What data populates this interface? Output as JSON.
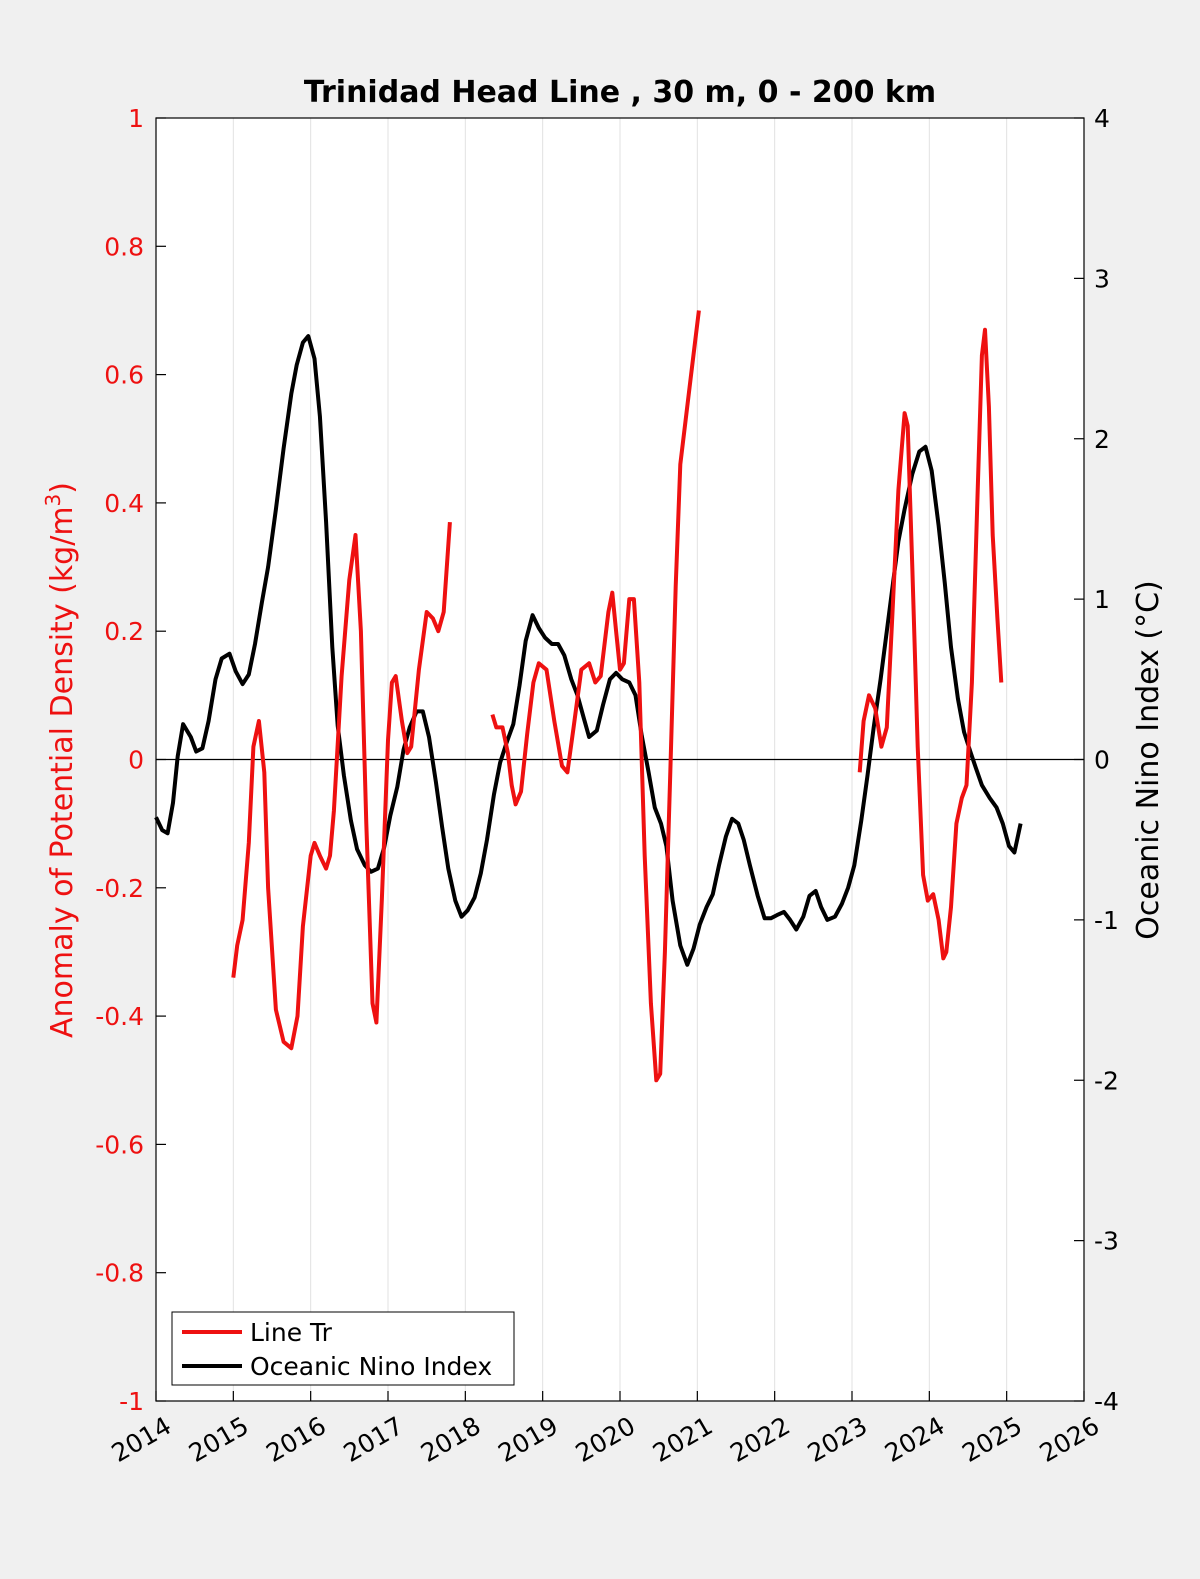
{
  "chart_data": {
    "type": "line",
    "title": "Trinidad Head Line , 30 m, 0 - 200 km",
    "xlabel": "",
    "ylabel_left_main": "Anomaly of Potential Density (kg/m",
    "ylabel_left_sup": "3",
    "ylabel_left_close": ")",
    "ylabel_right": "Oceanic Nino Index (°C)",
    "xlim": [
      2014,
      2026
    ],
    "ylim_left": [
      -1,
      1
    ],
    "ylim_right": [
      -4,
      4
    ],
    "x_ticks": [
      2014,
      2015,
      2016,
      2017,
      2018,
      2019,
      2020,
      2021,
      2022,
      2023,
      2024,
      2025,
      2026
    ],
    "x_tick_labels": [
      "2014",
      "2015",
      "2016",
      "2017",
      "2018",
      "2019",
      "2020",
      "2021",
      "2022",
      "2023",
      "2024",
      "2025",
      "2026"
    ],
    "y_ticks_left": [
      1,
      0.8,
      0.6,
      0.4,
      0.2,
      0,
      -0.2,
      -0.4,
      -0.6,
      -0.8,
      -1
    ],
    "y_tick_labels_left": [
      "1",
      "0.8",
      "0.6",
      "0.4",
      "0.2",
      "0",
      "-0.2",
      "-0.4",
      "-0.6",
      "-0.8",
      "-1"
    ],
    "y_ticks_right": [
      4,
      3,
      2,
      1,
      0,
      -1,
      -2,
      -3,
      -4
    ],
    "y_tick_labels_right": [
      "4",
      "3",
      "2",
      "1",
      "0",
      "-1",
      "-2",
      "-3",
      "-4"
    ],
    "grid": "vertical",
    "zero_line": true,
    "legend_position": "bottom-left",
    "colors": {
      "line_tr": "#ee1111",
      "oni": "#000000",
      "left_axis": "#ee1111",
      "right_axis": "#000000"
    },
    "series": [
      {
        "name": "Line Tr",
        "axis": "left",
        "segments": [
          [
            [
              2015.0,
              -0.34
            ],
            [
              2015.05,
              -0.29
            ],
            [
              2015.12,
              -0.25
            ],
            [
              2015.2,
              -0.13
            ],
            [
              2015.26,
              0.02
            ],
            [
              2015.33,
              0.06
            ],
            [
              2015.4,
              -0.02
            ],
            [
              2015.45,
              -0.2
            ],
            [
              2015.55,
              -0.39
            ],
            [
              2015.65,
              -0.44
            ],
            [
              2015.75,
              -0.45
            ],
            [
              2015.83,
              -0.4
            ],
            [
              2015.9,
              -0.26
            ],
            [
              2016.0,
              -0.15
            ],
            [
              2016.05,
              -0.13
            ],
            [
              2016.12,
              -0.15
            ],
            [
              2016.2,
              -0.17
            ],
            [
              2016.25,
              -0.15
            ],
            [
              2016.3,
              -0.08
            ],
            [
              2016.4,
              0.13
            ],
            [
              2016.5,
              0.28
            ],
            [
              2016.58,
              0.35
            ],
            [
              2016.65,
              0.2
            ],
            [
              2016.72,
              -0.1
            ],
            [
              2016.8,
              -0.38
            ],
            [
              2016.85,
              -0.41
            ],
            [
              2016.92,
              -0.22
            ],
            [
              2017.0,
              0.03
            ],
            [
              2017.05,
              0.12
            ],
            [
              2017.1,
              0.13
            ],
            [
              2017.18,
              0.06
            ],
            [
              2017.25,
              0.01
            ],
            [
              2017.3,
              0.02
            ],
            [
              2017.4,
              0.14
            ],
            [
              2017.5,
              0.23
            ],
            [
              2017.58,
              0.22
            ],
            [
              2017.65,
              0.2
            ],
            [
              2017.72,
              0.23
            ],
            [
              2017.8,
              0.37
            ]
          ],
          [
            [
              2018.35,
              0.07
            ],
            [
              2018.4,
              0.05
            ],
            [
              2018.48,
              0.05
            ],
            [
              2018.55,
              0.01
            ],
            [
              2018.6,
              -0.04
            ],
            [
              2018.65,
              -0.07
            ],
            [
              2018.72,
              -0.05
            ],
            [
              2018.8,
              0.04
            ],
            [
              2018.88,
              0.12
            ],
            [
              2018.95,
              0.15
            ],
            [
              2019.05,
              0.14
            ],
            [
              2019.15,
              0.06
            ],
            [
              2019.25,
              -0.01
            ],
            [
              2019.32,
              -0.02
            ],
            [
              2019.4,
              0.05
            ],
            [
              2019.5,
              0.14
            ],
            [
              2019.6,
              0.15
            ],
            [
              2019.68,
              0.12
            ],
            [
              2019.75,
              0.13
            ],
            [
              2019.85,
              0.23
            ],
            [
              2019.9,
              0.26
            ],
            [
              2019.95,
              0.2
            ],
            [
              2020.0,
              0.14
            ],
            [
              2020.05,
              0.15
            ],
            [
              2020.12,
              0.25
            ],
            [
              2020.18,
              0.25
            ],
            [
              2020.25,
              0.12
            ],
            [
              2020.32,
              -0.15
            ],
            [
              2020.4,
              -0.38
            ],
            [
              2020.47,
              -0.5
            ],
            [
              2020.52,
              -0.49
            ],
            [
              2020.58,
              -0.3
            ],
            [
              2020.65,
              -0.02
            ],
            [
              2020.72,
              0.27
            ],
            [
              2020.78,
              0.46
            ],
            [
              2020.85,
              0.53
            ],
            [
              2020.92,
              0.6
            ],
            [
              2020.97,
              0.65
            ],
            [
              2021.02,
              0.7
            ]
          ],
          [
            [
              2023.1,
              -0.02
            ],
            [
              2023.15,
              0.06
            ],
            [
              2023.22,
              0.1
            ],
            [
              2023.3,
              0.08
            ],
            [
              2023.38,
              0.02
            ],
            [
              2023.45,
              0.05
            ],
            [
              2023.52,
              0.22
            ],
            [
              2023.6,
              0.42
            ],
            [
              2023.68,
              0.54
            ],
            [
              2023.72,
              0.52
            ],
            [
              2023.78,
              0.3
            ],
            [
              2023.85,
              0.02
            ],
            [
              2023.92,
              -0.18
            ],
            [
              2023.98,
              -0.22
            ],
            [
              2024.05,
              -0.21
            ],
            [
              2024.12,
              -0.25
            ],
            [
              2024.18,
              -0.31
            ],
            [
              2024.22,
              -0.3
            ],
            [
              2024.28,
              -0.23
            ],
            [
              2024.35,
              -0.1
            ],
            [
              2024.42,
              -0.06
            ],
            [
              2024.48,
              -0.04
            ],
            [
              2024.55,
              0.12
            ],
            [
              2024.62,
              0.4
            ],
            [
              2024.68,
              0.63
            ],
            [
              2024.72,
              0.67
            ],
            [
              2024.77,
              0.55
            ],
            [
              2024.82,
              0.35
            ],
            [
              2024.88,
              0.22
            ],
            [
              2024.93,
              0.12
            ]
          ]
        ]
      },
      {
        "name": "Oceanic Nino Index",
        "axis": "right",
        "segments": [
          [
            [
              2014.0,
              -0.36
            ],
            [
              2014.08,
              -0.44
            ],
            [
              2014.15,
              -0.46
            ],
            [
              2014.22,
              -0.27
            ],
            [
              2014.28,
              0.02
            ],
            [
              2014.35,
              0.22
            ],
            [
              2014.45,
              0.14
            ],
            [
              2014.52,
              0.05
            ],
            [
              2014.6,
              0.07
            ],
            [
              2014.68,
              0.24
            ],
            [
              2014.77,
              0.5
            ],
            [
              2014.85,
              0.63
            ],
            [
              2014.95,
              0.66
            ],
            [
              2015.03,
              0.55
            ],
            [
              2015.12,
              0.47
            ],
            [
              2015.2,
              0.53
            ],
            [
              2015.28,
              0.72
            ],
            [
              2015.37,
              0.98
            ],
            [
              2015.45,
              1.2
            ],
            [
              2015.55,
              1.56
            ],
            [
              2015.65,
              1.94
            ],
            [
              2015.75,
              2.28
            ],
            [
              2015.82,
              2.46
            ],
            [
              2015.9,
              2.6
            ],
            [
              2015.97,
              2.64
            ],
            [
              2016.05,
              2.5
            ],
            [
              2016.12,
              2.14
            ],
            [
              2016.2,
              1.48
            ],
            [
              2016.28,
              0.7
            ],
            [
              2016.35,
              0.21
            ],
            [
              2016.43,
              -0.1
            ],
            [
              2016.52,
              -0.38
            ],
            [
              2016.6,
              -0.56
            ],
            [
              2016.7,
              -0.66
            ],
            [
              2016.78,
              -0.7
            ],
            [
              2016.87,
              -0.68
            ],
            [
              2016.95,
              -0.55
            ],
            [
              2017.03,
              -0.35
            ],
            [
              2017.12,
              -0.17
            ],
            [
              2017.2,
              0.06
            ],
            [
              2017.28,
              0.2
            ],
            [
              2017.37,
              0.3
            ],
            [
              2017.45,
              0.3
            ],
            [
              2017.53,
              0.14
            ],
            [
              2017.62,
              -0.14
            ],
            [
              2017.7,
              -0.42
            ],
            [
              2017.78,
              -0.68
            ],
            [
              2017.87,
              -0.88
            ],
            [
              2017.95,
              -0.98
            ],
            [
              2018.03,
              -0.94
            ],
            [
              2018.12,
              -0.86
            ],
            [
              2018.2,
              -0.71
            ],
            [
              2018.28,
              -0.5
            ],
            [
              2018.37,
              -0.22
            ],
            [
              2018.45,
              -0.02
            ],
            [
              2018.53,
              0.1
            ],
            [
              2018.62,
              0.22
            ],
            [
              2018.7,
              0.46
            ],
            [
              2018.78,
              0.74
            ],
            [
              2018.87,
              0.9
            ],
            [
              2018.95,
              0.82
            ],
            [
              2019.03,
              0.76
            ],
            [
              2019.12,
              0.72
            ],
            [
              2019.2,
              0.72
            ],
            [
              2019.28,
              0.65
            ],
            [
              2019.37,
              0.5
            ],
            [
              2019.45,
              0.4
            ],
            [
              2019.53,
              0.26
            ],
            [
              2019.6,
              0.14
            ],
            [
              2019.7,
              0.18
            ],
            [
              2019.78,
              0.34
            ],
            [
              2019.87,
              0.5
            ],
            [
              2019.95,
              0.54
            ],
            [
              2020.03,
              0.5
            ],
            [
              2020.12,
              0.48
            ],
            [
              2020.2,
              0.4
            ],
            [
              2020.28,
              0.15
            ],
            [
              2020.37,
              -0.08
            ],
            [
              2020.45,
              -0.3
            ],
            [
              2020.53,
              -0.4
            ],
            [
              2020.6,
              -0.54
            ],
            [
              2020.68,
              -0.88
            ],
            [
              2020.78,
              -1.16
            ],
            [
              2020.87,
              -1.28
            ],
            [
              2020.95,
              -1.18
            ],
            [
              2021.03,
              -1.03
            ],
            [
              2021.12,
              -0.92
            ],
            [
              2021.2,
              -0.84
            ],
            [
              2021.28,
              -0.66
            ],
            [
              2021.37,
              -0.48
            ],
            [
              2021.45,
              -0.37
            ],
            [
              2021.53,
              -0.4
            ],
            [
              2021.6,
              -0.5
            ],
            [
              2021.68,
              -0.66
            ],
            [
              2021.78,
              -0.85
            ],
            [
              2021.87,
              -0.99
            ],
            [
              2021.95,
              -0.99
            ],
            [
              2022.03,
              -0.97
            ],
            [
              2022.12,
              -0.95
            ],
            [
              2022.2,
              -1.0
            ],
            [
              2022.28,
              -1.06
            ],
            [
              2022.37,
              -0.98
            ],
            [
              2022.45,
              -0.85
            ],
            [
              2022.53,
              -0.82
            ],
            [
              2022.6,
              -0.92
            ],
            [
              2022.68,
              -1.0
            ],
            [
              2022.78,
              -0.98
            ],
            [
              2022.87,
              -0.9
            ],
            [
              2022.95,
              -0.8
            ],
            [
              2023.03,
              -0.66
            ],
            [
              2023.12,
              -0.38
            ],
            [
              2023.2,
              -0.1
            ],
            [
              2023.28,
              0.2
            ],
            [
              2023.37,
              0.5
            ],
            [
              2023.45,
              0.8
            ],
            [
              2023.53,
              1.1
            ],
            [
              2023.6,
              1.36
            ],
            [
              2023.68,
              1.56
            ],
            [
              2023.78,
              1.78
            ],
            [
              2023.87,
              1.92
            ],
            [
              2023.95,
              1.95
            ],
            [
              2024.03,
              1.8
            ],
            [
              2024.12,
              1.46
            ],
            [
              2024.2,
              1.1
            ],
            [
              2024.28,
              0.7
            ],
            [
              2024.37,
              0.38
            ],
            [
              2024.45,
              0.17
            ],
            [
              2024.53,
              0.05
            ],
            [
              2024.6,
              -0.05
            ],
            [
              2024.68,
              -0.16
            ],
            [
              2024.78,
              -0.24
            ],
            [
              2024.87,
              -0.3
            ],
            [
              2024.95,
              -0.4
            ],
            [
              2025.03,
              -0.54
            ],
            [
              2025.1,
              -0.58
            ],
            [
              2025.18,
              -0.4
            ]
          ]
        ]
      }
    ]
  }
}
